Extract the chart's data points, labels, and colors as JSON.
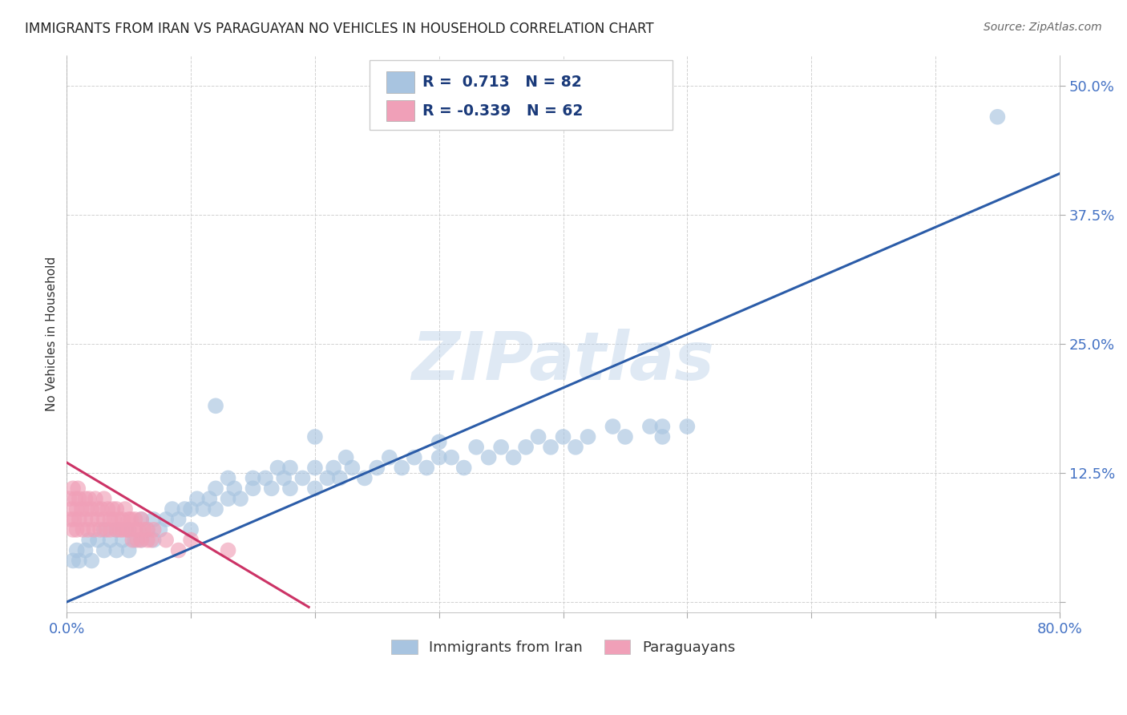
{
  "title": "IMMIGRANTS FROM IRAN VS PARAGUAYAN NO VEHICLES IN HOUSEHOLD CORRELATION CHART",
  "source": "Source: ZipAtlas.com",
  "ylabel": "No Vehicles in Household",
  "xmin": 0.0,
  "xmax": 0.8,
  "ymin": -0.01,
  "ymax": 0.53,
  "x_ticks": [
    0.0,
    0.1,
    0.2,
    0.3,
    0.4,
    0.5,
    0.6,
    0.7,
    0.8
  ],
  "y_ticks": [
    0.0,
    0.125,
    0.25,
    0.375,
    0.5
  ],
  "blue_R": 0.713,
  "blue_N": 82,
  "pink_R": -0.339,
  "pink_N": 62,
  "blue_color": "#a8c4e0",
  "blue_line_color": "#2b5ca8",
  "pink_color": "#f0a0b8",
  "pink_line_color": "#cc3366",
  "watermark_text": "ZIPatlas",
  "legend_label_blue": "Immigrants from Iran",
  "legend_label_pink": "Paraguayans",
  "blue_line_x0": 0.0,
  "blue_line_y0": 0.0,
  "blue_line_x1": 0.8,
  "blue_line_y1": 0.415,
  "pink_line_x0": 0.0,
  "pink_line_y0": 0.135,
  "pink_line_x1": 0.195,
  "pink_line_y1": -0.005,
  "blue_scatter_x": [
    0.005,
    0.008,
    0.01,
    0.015,
    0.018,
    0.02,
    0.025,
    0.03,
    0.03,
    0.035,
    0.04,
    0.04,
    0.045,
    0.05,
    0.05,
    0.055,
    0.06,
    0.06,
    0.065,
    0.07,
    0.07,
    0.075,
    0.08,
    0.085,
    0.09,
    0.095,
    0.1,
    0.1,
    0.105,
    0.11,
    0.115,
    0.12,
    0.12,
    0.13,
    0.13,
    0.135,
    0.14,
    0.15,
    0.15,
    0.16,
    0.165,
    0.17,
    0.175,
    0.18,
    0.18,
    0.19,
    0.2,
    0.2,
    0.21,
    0.215,
    0.22,
    0.225,
    0.23,
    0.24,
    0.25,
    0.26,
    0.27,
    0.28,
    0.29,
    0.3,
    0.31,
    0.32,
    0.33,
    0.34,
    0.35,
    0.36,
    0.37,
    0.38,
    0.39,
    0.4,
    0.41,
    0.42,
    0.44,
    0.45,
    0.47,
    0.48,
    0.5,
    0.12,
    0.2,
    0.3,
    0.48,
    0.75
  ],
  "blue_scatter_y": [
    0.04,
    0.05,
    0.04,
    0.05,
    0.06,
    0.04,
    0.06,
    0.05,
    0.07,
    0.06,
    0.07,
    0.05,
    0.06,
    0.07,
    0.05,
    0.06,
    0.08,
    0.06,
    0.07,
    0.08,
    0.06,
    0.07,
    0.08,
    0.09,
    0.08,
    0.09,
    0.09,
    0.07,
    0.1,
    0.09,
    0.1,
    0.09,
    0.11,
    0.1,
    0.12,
    0.11,
    0.1,
    0.12,
    0.11,
    0.12,
    0.11,
    0.13,
    0.12,
    0.11,
    0.13,
    0.12,
    0.13,
    0.11,
    0.12,
    0.13,
    0.12,
    0.14,
    0.13,
    0.12,
    0.13,
    0.14,
    0.13,
    0.14,
    0.13,
    0.14,
    0.14,
    0.13,
    0.15,
    0.14,
    0.15,
    0.14,
    0.15,
    0.16,
    0.15,
    0.16,
    0.15,
    0.16,
    0.17,
    0.16,
    0.17,
    0.16,
    0.17,
    0.19,
    0.16,
    0.155,
    0.17,
    0.47
  ],
  "pink_scatter_x": [
    0.002,
    0.003,
    0.004,
    0.005,
    0.005,
    0.006,
    0.007,
    0.008,
    0.008,
    0.009,
    0.01,
    0.01,
    0.012,
    0.013,
    0.015,
    0.015,
    0.016,
    0.017,
    0.018,
    0.02,
    0.02,
    0.022,
    0.023,
    0.025,
    0.025,
    0.027,
    0.028,
    0.03,
    0.03,
    0.032,
    0.033,
    0.035,
    0.035,
    0.037,
    0.038,
    0.04,
    0.04,
    0.042,
    0.043,
    0.045,
    0.045,
    0.047,
    0.048,
    0.05,
    0.05,
    0.052,
    0.053,
    0.055,
    0.055,
    0.057,
    0.058,
    0.06,
    0.06,
    0.062,
    0.065,
    0.065,
    0.068,
    0.07,
    0.08,
    0.09,
    0.1,
    0.13
  ],
  "pink_scatter_y": [
    0.1,
    0.08,
    0.09,
    0.07,
    0.11,
    0.08,
    0.1,
    0.09,
    0.07,
    0.11,
    0.08,
    0.1,
    0.09,
    0.07,
    0.1,
    0.08,
    0.09,
    0.07,
    0.1,
    0.08,
    0.09,
    0.07,
    0.1,
    0.08,
    0.09,
    0.07,
    0.09,
    0.08,
    0.1,
    0.07,
    0.09,
    0.08,
    0.07,
    0.09,
    0.08,
    0.07,
    0.09,
    0.08,
    0.07,
    0.08,
    0.07,
    0.09,
    0.07,
    0.08,
    0.07,
    0.08,
    0.06,
    0.07,
    0.08,
    0.06,
    0.07,
    0.06,
    0.08,
    0.07,
    0.06,
    0.07,
    0.06,
    0.07,
    0.06,
    0.05,
    0.06,
    0.05
  ]
}
